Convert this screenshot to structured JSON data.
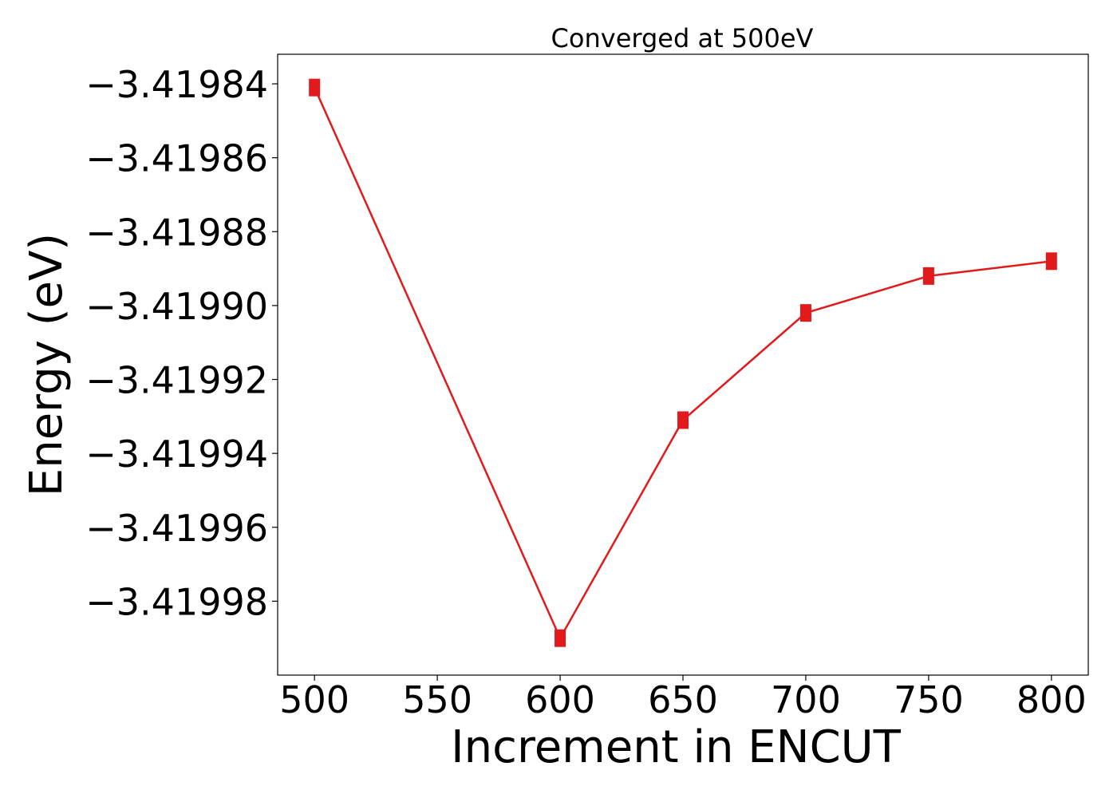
{
  "chart_data": {
    "type": "line",
    "title": "Converged at 500eV",
    "xlabel": "Increment in ENCUT",
    "ylabel": "Energy (eV)",
    "x": [
      500,
      600,
      650,
      700,
      750,
      800
    ],
    "series": [
      {
        "values": [
          -3.419841,
          -3.41999,
          -3.419931,
          -3.419902,
          -3.419892,
          -3.419888
        ],
        "color": "#e31a1c",
        "marker": "square"
      }
    ],
    "xticks": [
      500,
      550,
      600,
      650,
      700,
      750,
      800
    ],
    "xtick_labels": [
      "500",
      "550",
      "600",
      "650",
      "700",
      "750",
      "800"
    ],
    "yticks": [
      -3.41984,
      -3.41986,
      -3.41988,
      -3.4199,
      -3.41992,
      -3.41994,
      -3.41996,
      -3.41998
    ],
    "ytick_labels": [
      "−3.41984",
      "−3.41986",
      "−3.41988",
      "−3.41990",
      "−3.41992",
      "−3.41994",
      "−3.41996",
      "−3.41998"
    ],
    "xlim": [
      485,
      815
    ],
    "ylim": [
      -3.42,
      -3.419832
    ],
    "grid": false,
    "legend": "none"
  }
}
